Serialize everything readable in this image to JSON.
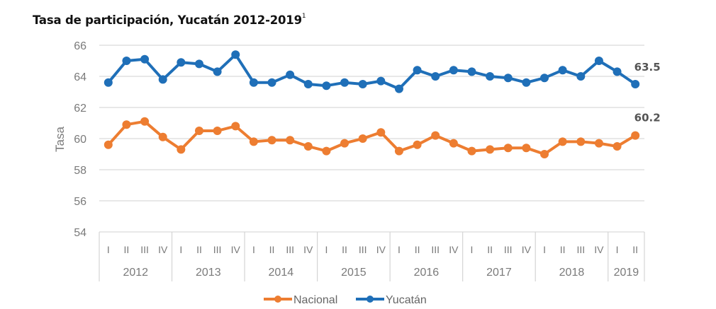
{
  "chart_data": {
    "type": "line",
    "title": "Tasa de participación, Yucatán 2012-2019",
    "title_footnote": "1",
    "xlabel": "",
    "ylabel": "Tasa",
    "ylim": [
      54,
      66
    ],
    "yticks": [
      "54",
      "56",
      "58",
      "60",
      "62",
      "64",
      "66"
    ],
    "grid": true,
    "legend_position": "bottom-center",
    "years": [
      {
        "label": "2012",
        "quarters": [
          "I",
          "II",
          "III",
          "IV"
        ]
      },
      {
        "label": "2013",
        "quarters": [
          "I",
          "II",
          "III",
          "IV"
        ]
      },
      {
        "label": "2014",
        "quarters": [
          "I",
          "II",
          "III",
          "IV"
        ]
      },
      {
        "label": "2015",
        "quarters": [
          "I",
          "II",
          "III",
          "IV"
        ]
      },
      {
        "label": "2016",
        "quarters": [
          "I",
          "II",
          "III",
          "IV"
        ]
      },
      {
        "label": "2017",
        "quarters": [
          "I",
          "II",
          "III",
          "IV"
        ]
      },
      {
        "label": "2018",
        "quarters": [
          "I",
          "II",
          "III",
          "IV"
        ]
      },
      {
        "label": "2019",
        "quarters": [
          "I",
          "II"
        ]
      }
    ],
    "series": [
      {
        "name": "Nacional",
        "color": "#ed7d31",
        "end_label": "60.2",
        "values": [
          59.6,
          60.9,
          61.1,
          60.1,
          59.3,
          60.5,
          60.5,
          60.8,
          59.8,
          59.9,
          59.9,
          59.5,
          59.2,
          59.7,
          60.0,
          60.4,
          59.2,
          59.6,
          60.2,
          59.7,
          59.2,
          59.3,
          59.4,
          59.4,
          59.0,
          59.8,
          59.8,
          59.7,
          59.5,
          60.2
        ]
      },
      {
        "name": "Yucatán",
        "color": "#1f6fb8",
        "end_label": "63.5",
        "values": [
          63.6,
          65.0,
          65.1,
          63.8,
          64.9,
          64.8,
          64.3,
          65.4,
          63.6,
          63.6,
          64.1,
          63.5,
          63.4,
          63.6,
          63.5,
          63.7,
          63.2,
          64.4,
          64.0,
          64.4,
          64.3,
          64.0,
          63.9,
          63.6,
          63.9,
          64.4,
          64.0,
          65.0,
          64.3,
          63.5
        ]
      }
    ]
  }
}
